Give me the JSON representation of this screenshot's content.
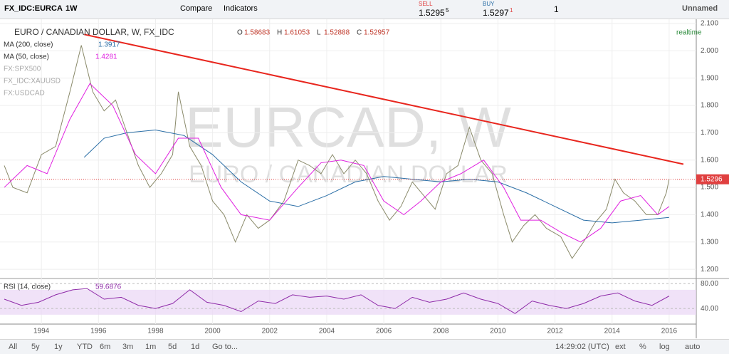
{
  "toolbar": {
    "symbol": "FX_IDC:EURCA",
    "interval": "1W",
    "compare": "Compare",
    "indicators": "Indicators",
    "sell_label": "SELL",
    "sell_price": "1.5295",
    "sell_pip": "5",
    "buy_label": "BUY",
    "buy_price": "1.5297",
    "buy_pip": "1",
    "quantity": "1",
    "layout_name": "Unnamed"
  },
  "legend": {
    "title": "EURO / CANADIAN DOLLAR, W, FX_IDC",
    "o_label": "O",
    "o": "1.58683",
    "h_label": "H",
    "h": "1.61053",
    "l_label": "L",
    "l": "1.52888",
    "c_label": "C",
    "c": "1.52957",
    "ma200": "MA (200, close)",
    "ma200_value": "1.3917",
    "ma50": "MA (50, close)",
    "ma50_value": "1.4281",
    "compare": [
      "FX:SPX500",
      "FX_IDC:XAUUSD",
      "FX:USDCAD"
    ],
    "realtime": "realtime",
    "rsi": "RSI (14, close)",
    "rsi_value": "59.6876"
  },
  "watermark": {
    "symbol": "EURCAD, W",
    "name": "EURO / CANADIAN DOLLAR"
  },
  "bottom_bar": {
    "ranges": [
      "All",
      "5y",
      "1y",
      "YTD",
      "6m",
      "3m",
      "1m",
      "5d",
      "1d",
      "Go to..."
    ],
    "time": "14:29:02 (UTC)",
    "options": [
      "ext",
      "%",
      "log",
      "auto"
    ]
  },
  "chart_data": [
    {
      "type": "line",
      "xlim": [
        1992.55,
        2016.95
      ],
      "ylim": [
        1.169,
        2.113
      ],
      "xticks": [
        1994,
        1996,
        1998,
        2000,
        2002,
        2004,
        2006,
        2008,
        2010,
        2012,
        2014,
        2016
      ],
      "yticks": [
        {
          "value": 1.2,
          "label": "1.200"
        },
        {
          "value": 1.3,
          "label": "1.300"
        },
        {
          "value": 1.4,
          "label": "1.400"
        },
        {
          "value": 1.5,
          "label": "1.500"
        },
        {
          "value": 1.6,
          "label": "1.600"
        },
        {
          "value": 1.7,
          "label": "1.700"
        },
        {
          "value": 1.8,
          "label": "1.800"
        },
        {
          "value": 1.9,
          "label": "1.900"
        },
        {
          "value": 2.0,
          "label": "2.000"
        },
        {
          "value": 2.1,
          "label": "2.100"
        }
      ],
      "grid": true,
      "last_price": {
        "value": 1.5296,
        "label": "1.5296"
      },
      "series": [
        {
          "name": "EURCAD",
          "color": "#8a8a6a",
          "x": [
            1992.7,
            1993.0,
            1993.5,
            1994.0,
            1994.5,
            1995.0,
            1995.4,
            1995.8,
            1996.2,
            1996.6,
            1997.0,
            1997.4,
            1997.8,
            1998.2,
            1998.6,
            1998.8,
            1999.2,
            1999.6,
            2000.0,
            2000.4,
            2000.8,
            2001.2,
            2001.6,
            2002.0,
            2002.5,
            2003.0,
            2003.4,
            2003.8,
            2004.2,
            2004.6,
            2005.0,
            2005.4,
            2005.8,
            2006.2,
            2006.6,
            2007.0,
            2007.4,
            2007.8,
            2008.2,
            2008.6,
            2009.0,
            2009.4,
            2009.8,
            2010.2,
            2010.5,
            2010.9,
            2011.3,
            2011.7,
            2012.2,
            2012.6,
            2013.0,
            2013.4,
            2013.8,
            2014.1,
            2014.4,
            2014.8,
            2015.2,
            2015.6,
            2015.9,
            2016.0
          ],
          "values": [
            1.58,
            1.5,
            1.48,
            1.62,
            1.65,
            1.85,
            2.02,
            1.85,
            1.78,
            1.82,
            1.7,
            1.58,
            1.5,
            1.55,
            1.62,
            1.85,
            1.65,
            1.58,
            1.45,
            1.4,
            1.3,
            1.4,
            1.35,
            1.38,
            1.45,
            1.6,
            1.58,
            1.55,
            1.62,
            1.55,
            1.6,
            1.55,
            1.45,
            1.38,
            1.43,
            1.52,
            1.47,
            1.42,
            1.55,
            1.58,
            1.72,
            1.6,
            1.55,
            1.4,
            1.3,
            1.36,
            1.4,
            1.35,
            1.32,
            1.24,
            1.3,
            1.37,
            1.42,
            1.53,
            1.48,
            1.45,
            1.4,
            1.4,
            1.48,
            1.53
          ]
        },
        {
          "name": "MA (200, close)",
          "color": "#2a6ea6",
          "x": [
            1995.5,
            1996.2,
            1997,
            1998,
            1999,
            2000,
            2001,
            2002,
            2003,
            2004,
            2005,
            2006,
            2007,
            2008,
            2009,
            2010,
            2011,
            2012,
            2013,
            2014,
            2015,
            2016
          ],
          "values": [
            1.61,
            1.68,
            1.7,
            1.71,
            1.69,
            1.62,
            1.52,
            1.45,
            1.43,
            1.47,
            1.52,
            1.54,
            1.53,
            1.52,
            1.53,
            1.52,
            1.48,
            1.43,
            1.38,
            1.37,
            1.38,
            1.39
          ]
        },
        {
          "name": "MA (50, close)",
          "color": "#e020e0",
          "x": [
            1992.7,
            1993.5,
            1994.2,
            1995,
            1995.7,
            1996.5,
            1997.3,
            1998,
            1998.8,
            1999.5,
            2000.3,
            2001,
            2002,
            2003,
            2003.8,
            2004.5,
            2005.3,
            2006,
            2006.7,
            2007.3,
            2008,
            2008.7,
            2009.5,
            2010.2,
            2010.8,
            2011.5,
            2012.3,
            2012.9,
            2013.6,
            2014.3,
            2015,
            2015.6,
            2016.0
          ],
          "values": [
            1.5,
            1.58,
            1.55,
            1.75,
            1.88,
            1.8,
            1.62,
            1.55,
            1.68,
            1.68,
            1.5,
            1.4,
            1.38,
            1.5,
            1.59,
            1.6,
            1.58,
            1.45,
            1.4,
            1.45,
            1.52,
            1.55,
            1.6,
            1.5,
            1.38,
            1.38,
            1.33,
            1.3,
            1.35,
            1.45,
            1.47,
            1.4,
            1.43
          ]
        },
        {
          "name": "trend line",
          "color": "#e8261e",
          "x": [
            1995.5,
            2016.5
          ],
          "values": [
            2.06,
            1.585
          ]
        }
      ]
    },
    {
      "type": "line",
      "xlim": [
        1992.55,
        2016.95
      ],
      "ylim": [
        15,
        87
      ],
      "yticks": [
        {
          "value": 40,
          "label": "40.00"
        },
        {
          "value": 80,
          "label": "80.00"
        }
      ],
      "band": [
        30,
        70
      ],
      "series": [
        {
          "name": "RSI",
          "color": "#8e2aa8",
          "x": [
            1992.7,
            1993.3,
            1993.9,
            1994.5,
            1995.1,
            1995.6,
            1996.2,
            1996.8,
            1997.4,
            1998,
            1998.6,
            1999.2,
            1999.8,
            2000.4,
            2001,
            2001.6,
            2002.2,
            2002.8,
            2003.4,
            2004,
            2004.6,
            2005.2,
            2005.8,
            2006.4,
            2007,
            2007.6,
            2008.2,
            2008.8,
            2009.4,
            2010,
            2010.6,
            2011.2,
            2011.8,
            2012.4,
            2013,
            2013.6,
            2014.2,
            2014.8,
            2015.4,
            2016.0
          ],
          "values": [
            55,
            45,
            50,
            62,
            70,
            72,
            55,
            58,
            45,
            40,
            48,
            70,
            50,
            45,
            35,
            52,
            48,
            62,
            58,
            60,
            55,
            62,
            45,
            40,
            58,
            50,
            55,
            65,
            55,
            48,
            32,
            52,
            45,
            40,
            48,
            60,
            65,
            52,
            45,
            60
          ]
        }
      ]
    }
  ]
}
